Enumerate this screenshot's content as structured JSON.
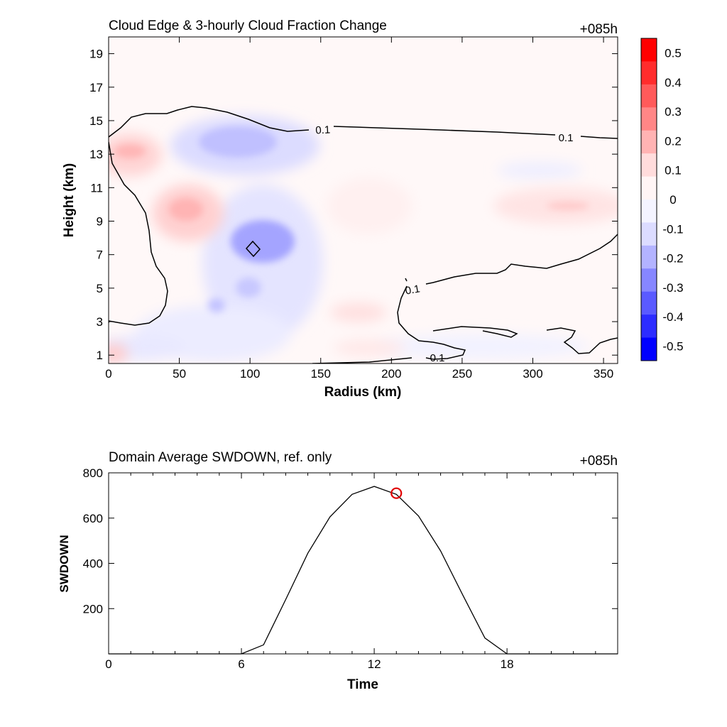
{
  "chart_data": [
    {
      "type": "heatmap",
      "title": "Cloud Edge & 3-hourly Cloud Fraction Change",
      "time_label": "+085h",
      "xlabel": "Radius (km)",
      "ylabel": "Height (km)",
      "xlim": [
        0,
        360
      ],
      "ylim": [
        0.5,
        20
      ],
      "x_ticks": [
        "0",
        "50",
        "100",
        "150",
        "200",
        "250",
        "300",
        "350"
      ],
      "y_ticks": [
        "1",
        "3",
        "5",
        "7",
        "9",
        "11",
        "13",
        "15",
        "17",
        "19"
      ],
      "x_tick_values": [
        0,
        50,
        100,
        150,
        200,
        250,
        300,
        350
      ],
      "y_tick_values": [
        1,
        3,
        5,
        7,
        9,
        11,
        13,
        15,
        17,
        19
      ],
      "colorbar": {
        "labels": [
          "0.5",
          "0.4",
          "0.3",
          "0.2",
          "0.1",
          "0",
          "-0.1",
          "-0.2",
          "-0.3",
          "-0.4",
          "-0.5"
        ],
        "colors": [
          "#ff0000",
          "#ff2c2c",
          "#ff5a5a",
          "#ff8686",
          "#ffb3b3",
          "#ffdcdc",
          "#fff5f5",
          "#f4f4ff",
          "#dcdcff",
          "#b3b3ff",
          "#8686ff",
          "#5a5aff",
          "#2c2cff",
          "#0000ff"
        ]
      },
      "contour_labels": [
        "0.1",
        "0.1",
        "0.1",
        "0.1"
      ],
      "features": [
        {
          "kind": "positive",
          "x": 18,
          "y": 13.1,
          "value": 0.2
        },
        {
          "kind": "positive",
          "x": 55,
          "y": 9.8,
          "value": 0.2
        },
        {
          "kind": "positive",
          "x": 330,
          "y": 9.9,
          "value": 0.1
        },
        {
          "kind": "negative",
          "x": 100,
          "y": 14.0,
          "value": -0.2
        },
        {
          "kind": "negative",
          "x": 105,
          "y": 7.8,
          "value": -0.3
        },
        {
          "kind": "negative",
          "x": 80,
          "y": 4.0,
          "value": -0.2
        },
        {
          "kind": "positive",
          "x": 175,
          "y": 3.5,
          "value": 0.1
        }
      ]
    },
    {
      "type": "line",
      "title": "Domain Average SWDOWN, ref. only",
      "time_label": "+085h",
      "xlabel": "Time",
      "ylabel": "SWDOWN",
      "xlim": [
        0,
        23
      ],
      "ylim": [
        0,
        800
      ],
      "x_ticks": [
        "0",
        "6",
        "12",
        "18"
      ],
      "y_ticks": [
        "200",
        "400",
        "600",
        "800"
      ],
      "x_tick_values": [
        0,
        6,
        12,
        18
      ],
      "y_tick_values": [
        200,
        400,
        600,
        800
      ],
      "x": [
        0,
        6,
        7,
        8,
        9,
        10,
        11,
        12,
        13,
        14,
        15,
        16,
        17,
        18,
        23
      ],
      "values": [
        0,
        0,
        40,
        240,
        445,
        605,
        705,
        740,
        705,
        610,
        455,
        260,
        70,
        0,
        0
      ],
      "marker": {
        "x": 13,
        "y": 710,
        "color": "#e00000"
      }
    }
  ]
}
